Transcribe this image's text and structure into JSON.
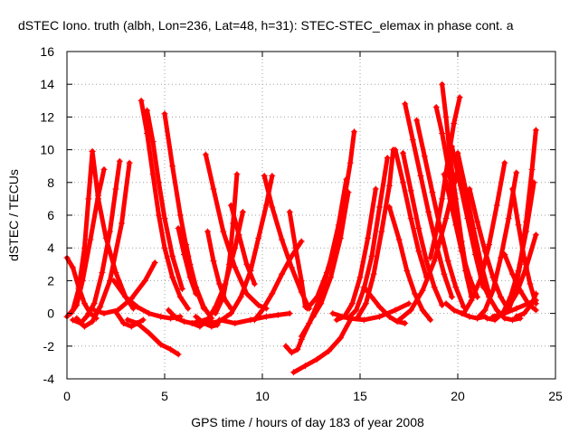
{
  "chart_data": {
    "type": "scatter",
    "title": "dSTEC Iono. truth (albh, Lon=236, Lat=48, h=31): STEC-STEC_elemax in phase cont. a",
    "xlabel": "GPS time / hours of day 183 of year 2008",
    "ylabel": "dSTEC  / TECUs",
    "xlim": [
      0,
      25
    ],
    "ylim": [
      -4,
      16
    ],
    "xticks": [
      0,
      5,
      10,
      15,
      20,
      25
    ],
    "yticks": [
      -4,
      -2,
      0,
      2,
      4,
      6,
      8,
      10,
      12,
      14,
      16
    ],
    "grid": true,
    "marker": "+",
    "color": "#ff0000",
    "series": [
      {
        "x": [
          0.0,
          0.3,
          0.6,
          0.9,
          1.2,
          1.5
        ],
        "y": [
          3.4,
          2.8,
          1.6,
          0.6,
          0.0,
          -0.3
        ]
      },
      {
        "x": [
          0.0,
          0.3,
          0.6,
          0.9,
          1.1,
          1.3
        ],
        "y": [
          -0.2,
          0.2,
          1.5,
          4.0,
          7.0,
          9.9
        ]
      },
      {
        "x": [
          0.2,
          0.5,
          0.8,
          1.2,
          1.6,
          1.9
        ],
        "y": [
          0.0,
          0.5,
          2.0,
          4.5,
          7.2,
          8.8
        ]
      },
      {
        "x": [
          0.3,
          0.7,
          1.0,
          1.4,
          1.8,
          2.2,
          2.5,
          2.7
        ],
        "y": [
          -0.4,
          -0.6,
          -0.2,
          0.6,
          2.5,
          5.0,
          7.6,
          9.3
        ]
      },
      {
        "x": [
          0.5,
          0.9,
          1.3,
          1.7,
          2.2,
          2.8,
          3.2
        ],
        "y": [
          -0.3,
          -0.8,
          -0.5,
          0.4,
          2.0,
          5.5,
          9.2
        ]
      },
      {
        "x": [
          1.3,
          1.6,
          2.0,
          2.5,
          3.0,
          3.4
        ],
        "y": [
          9.9,
          7.0,
          4.6,
          2.5,
          1.0,
          0.3
        ]
      },
      {
        "x": [
          1.4,
          1.9,
          2.6,
          3.3,
          4.0,
          4.5
        ],
        "y": [
          0.2,
          0.0,
          0.2,
          0.9,
          2.0,
          3.1
        ]
      },
      {
        "x": [
          2.5,
          2.9,
          3.3,
          3.6,
          3.9
        ],
        "y": [
          0.1,
          -0.6,
          -0.8,
          -0.6,
          -0.4
        ]
      },
      {
        "x": [
          3.1,
          3.6,
          4.2,
          4.8,
          5.3,
          5.7
        ],
        "y": [
          -0.4,
          -0.6,
          -1.2,
          -1.9,
          -2.2,
          -2.5
        ]
      },
      {
        "x": [
          2.4,
          3.0,
          3.6,
          4.2,
          4.8,
          5.3,
          5.8
        ],
        "y": [
          2.0,
          1.0,
          0.4,
          0.0,
          -0.2,
          -0.3,
          -0.2
        ]
      },
      {
        "x": [
          3.8,
          4.1,
          4.4,
          4.7,
          5.0,
          5.4,
          5.8,
          6.2
        ],
        "y": [
          13.0,
          11.0,
          8.5,
          6.0,
          4.0,
          2.2,
          1.0,
          0.3
        ]
      },
      {
        "x": [
          4.1,
          4.4,
          4.7,
          5.0,
          5.4,
          5.9
        ],
        "y": [
          12.4,
          10.5,
          8.0,
          5.8,
          3.5,
          1.5
        ]
      },
      {
        "x": [
          5.0,
          5.4,
          5.8,
          6.2,
          6.6,
          7.0
        ],
        "y": [
          12.2,
          9.0,
          6.0,
          3.5,
          1.5,
          0.3
        ]
      },
      {
        "x": [
          5.7,
          6.0,
          6.3,
          6.6
        ],
        "y": [
          5.2,
          3.6,
          2.2,
          1.2
        ]
      },
      {
        "x": [
          5.2,
          5.6,
          6.0,
          6.4,
          6.8,
          7.3
        ],
        "y": [
          0.2,
          -0.3,
          -0.5,
          -0.6,
          -0.5,
          -0.3
        ]
      },
      {
        "x": [
          6.1,
          6.3,
          6.6,
          7.0,
          7.4
        ],
        "y": [
          4.2,
          3.0,
          1.6,
          0.4,
          -0.3
        ]
      },
      {
        "x": [
          6.4,
          6.8,
          7.2,
          7.6,
          8.1,
          8.6,
          9.0
        ],
        "y": [
          -0.6,
          -0.8,
          -0.4,
          0.4,
          1.8,
          4.0,
          6.2
        ]
      },
      {
        "x": [
          6.6,
          7.0,
          7.4,
          7.7
        ],
        "y": [
          -0.2,
          -0.6,
          -0.8,
          -0.7
        ]
      },
      {
        "x": [
          7.1,
          7.5,
          8.0,
          8.6,
          9.2,
          9.8,
          10.2
        ],
        "y": [
          9.7,
          7.6,
          5.0,
          2.8,
          1.2,
          0.5,
          0.3
        ]
      },
      {
        "x": [
          7.2,
          7.5,
          7.8,
          8.1,
          8.4
        ],
        "y": [
          5.0,
          3.2,
          1.8,
          0.8,
          0.3
        ]
      },
      {
        "x": [
          7.6,
          8.0,
          8.3,
          8.5,
          8.7
        ],
        "y": [
          0.0,
          1.0,
          3.0,
          5.5,
          8.5
        ]
      },
      {
        "x": [
          7.2,
          7.8,
          8.4,
          8.9,
          9.4,
          9.8,
          10.2,
          10.5
        ],
        "y": [
          -0.6,
          -0.5,
          0.0,
          1.0,
          2.6,
          4.6,
          6.6,
          8.4
        ]
      },
      {
        "x": [
          8.4,
          8.8,
          9.2,
          9.6
        ],
        "y": [
          6.6,
          4.8,
          3.0,
          1.8
        ]
      },
      {
        "x": [
          7.8,
          8.6,
          9.4,
          10.2,
          10.8,
          11.4
        ],
        "y": [
          -0.4,
          -0.6,
          -0.4,
          -0.2,
          -0.1,
          0.0
        ]
      },
      {
        "x": [
          9.6,
          10.0,
          10.5,
          11.0,
          11.5,
          12.0
        ],
        "y": [
          -0.4,
          0.2,
          1.2,
          2.4,
          3.5,
          4.4
        ]
      },
      {
        "x": [
          10.1,
          10.5,
          11.0,
          11.5,
          12.0,
          12.4
        ],
        "y": [
          8.4,
          6.5,
          4.5,
          2.8,
          1.3,
          0.3
        ]
      },
      {
        "x": [
          11.2,
          11.5,
          11.8,
          12.0,
          12.4,
          12.8
        ],
        "y": [
          -2.0,
          -2.4,
          -2.2,
          -1.6,
          -0.6,
          0.3
        ]
      },
      {
        "x": [
          11.4,
          11.7,
          12.0,
          12.2
        ],
        "y": [
          6.2,
          4.0,
          2.0,
          0.4
        ]
      },
      {
        "x": [
          11.6,
          12.2,
          12.8,
          13.4,
          14.0,
          14.5
        ],
        "y": [
          -3.6,
          -3.2,
          -2.8,
          -2.3,
          -1.5,
          -0.4
        ]
      },
      {
        "x": [
          12.3,
          12.8,
          13.3,
          13.8,
          14.2,
          14.5,
          14.7
        ],
        "y": [
          0.3,
          1.0,
          2.5,
          4.5,
          7.0,
          9.2,
          11.1
        ]
      },
      {
        "x": [
          12.0,
          12.4,
          12.9,
          13.4,
          13.9,
          14.3
        ],
        "y": [
          -1.4,
          -0.6,
          0.8,
          2.8,
          5.4,
          8.2
        ]
      },
      {
        "x": [
          12.6,
          13.0,
          13.5,
          14.0,
          14.4
        ],
        "y": [
          -0.2,
          0.6,
          2.2,
          4.6,
          7.4
        ]
      },
      {
        "x": [
          13.8,
          14.2,
          14.6,
          15.0,
          15.4,
          15.8
        ],
        "y": [
          -0.4,
          -0.2,
          0.6,
          2.2,
          4.6,
          7.6
        ]
      },
      {
        "x": [
          14.4,
          14.8,
          15.2,
          15.6,
          16.0,
          16.4
        ],
        "y": [
          -0.3,
          0.2,
          1.5,
          3.5,
          6.5,
          9.5
        ]
      },
      {
        "x": [
          14.9,
          15.3,
          15.7,
          16.1,
          16.5,
          16.7
        ],
        "y": [
          -0.2,
          0.6,
          2.4,
          5.0,
          7.8,
          10.0
        ]
      },
      {
        "x": [
          13.6,
          14.4,
          15.2,
          16.0,
          16.8,
          17.5
        ],
        "y": [
          0.0,
          -0.3,
          -0.4,
          -0.2,
          0.2,
          0.6
        ]
      },
      {
        "x": [
          15.2,
          15.6,
          16.0,
          16.5,
          16.9,
          17.3
        ],
        "y": [
          1.6,
          1.0,
          0.4,
          -0.2,
          -0.5,
          -0.6
        ]
      },
      {
        "x": [
          16.5,
          17.0,
          17.4,
          17.8,
          18.2,
          18.6
        ],
        "y": [
          6.5,
          4.5,
          2.6,
          1.2,
          0.2,
          -0.4
        ]
      },
      {
        "x": [
          16.8,
          17.2,
          17.6,
          18.0,
          18.4
        ],
        "y": [
          10.0,
          8.0,
          5.8,
          3.8,
          2.2
        ]
      },
      {
        "x": [
          17.2,
          17.6,
          18.0,
          18.4,
          18.8,
          19.2
        ],
        "y": [
          9.8,
          7.5,
          5.2,
          3.2,
          1.6,
          0.5
        ]
      },
      {
        "x": [
          17.3,
          17.7,
          18.1,
          18.5,
          18.9,
          19.3,
          19.7
        ],
        "y": [
          12.8,
          10.6,
          8.4,
          6.2,
          4.2,
          2.4,
          1.0
        ]
      },
      {
        "x": [
          17.9,
          18.3,
          18.7,
          19.1,
          19.5,
          19.9,
          20.3
        ],
        "y": [
          11.8,
          9.6,
          7.4,
          5.2,
          3.2,
          1.6,
          0.4
        ]
      },
      {
        "x": [
          18.9,
          19.2,
          19.5,
          19.8,
          20.1,
          20.4,
          20.7
        ],
        "y": [
          12.6,
          11.0,
          9.0,
          6.8,
          4.6,
          2.6,
          1.0
        ]
      },
      {
        "x": [
          19.2,
          19.4,
          19.6,
          19.9,
          20.2,
          20.5
        ],
        "y": [
          14.0,
          12.0,
          9.6,
          7.0,
          4.4,
          2.2
        ]
      },
      {
        "x": [
          18.6,
          18.9,
          19.2,
          19.5,
          19.8,
          20.1
        ],
        "y": [
          3.4,
          5.0,
          7.0,
          9.4,
          11.6,
          13.2
        ]
      },
      {
        "x": [
          17.0,
          17.6,
          18.2,
          18.8,
          19.4,
          20.0
        ],
        "y": [
          -0.4,
          0.2,
          1.4,
          3.2,
          5.8,
          8.8
        ]
      },
      {
        "x": [
          19.3,
          19.6,
          19.9,
          20.2,
          20.6,
          21.0
        ],
        "y": [
          8.5,
          7.0,
          5.4,
          3.8,
          2.2,
          1.0
        ]
      },
      {
        "x": [
          19.4,
          19.8,
          20.2,
          20.6,
          21.0,
          21.4
        ],
        "y": [
          0.6,
          0.2,
          0.0,
          -0.2,
          -0.3,
          -0.2
        ]
      },
      {
        "x": [
          19.7,
          20.1,
          20.5,
          20.9,
          21.3
        ],
        "y": [
          10.2,
          8.0,
          5.8,
          3.6,
          1.6
        ]
      },
      {
        "x": [
          20.0,
          20.4,
          20.8,
          21.2,
          21.6
        ],
        "y": [
          9.8,
          7.6,
          5.2,
          3.0,
          1.2
        ]
      },
      {
        "x": [
          20.6,
          21.0,
          21.4,
          21.8,
          22.2,
          22.6
        ],
        "y": [
          7.6,
          5.6,
          3.8,
          2.2,
          1.0,
          0.2
        ]
      },
      {
        "x": [
          20.3,
          20.7,
          21.2,
          21.6,
          22.0,
          22.4
        ],
        "y": [
          0.0,
          0.8,
          2.2,
          4.2,
          6.6,
          9.2
        ]
      },
      {
        "x": [
          21.0,
          21.4,
          21.8,
          22.2,
          22.6,
          23.0
        ],
        "y": [
          -0.3,
          0.2,
          1.4,
          3.4,
          5.8,
          8.6
        ]
      },
      {
        "x": [
          21.5,
          21.9,
          22.3,
          22.7,
          23.1,
          23.5,
          23.9
        ],
        "y": [
          -0.3,
          -0.4,
          0.0,
          1.0,
          2.6,
          5.0,
          8.0
        ]
      },
      {
        "x": [
          21.2,
          21.6,
          22.0,
          22.4,
          22.8,
          23.2
        ],
        "y": [
          2.0,
          1.0,
          0.2,
          -0.3,
          -0.4,
          -0.3
        ]
      },
      {
        "x": [
          22.6,
          22.9,
          23.2,
          23.5,
          23.8,
          24.0
        ],
        "y": [
          0.2,
          1.2,
          3.0,
          5.6,
          8.8,
          11.2
        ]
      },
      {
        "x": [
          22.8,
          23.1,
          23.4,
          23.7,
          24.0
        ],
        "y": [
          7.6,
          5.4,
          3.4,
          1.8,
          0.6
        ]
      },
      {
        "x": [
          22.0,
          22.5,
          23.0,
          23.5,
          24.0
        ],
        "y": [
          -0.2,
          0.2,
          1.2,
          2.8,
          4.8
        ]
      },
      {
        "x": [
          21.8,
          22.4,
          23.0,
          23.6,
          24.0
        ],
        "y": [
          -0.2,
          0.0,
          0.3,
          0.6,
          0.8
        ]
      },
      {
        "x": [
          22.4,
          22.8,
          23.2,
          23.6,
          24.0
        ],
        "y": [
          3.6,
          2.4,
          1.4,
          0.6,
          0.2
        ]
      },
      {
        "x": [
          23.0,
          23.4,
          23.8,
          24.0
        ],
        "y": [
          -0.2,
          0.0,
          0.6,
          1.2
        ]
      }
    ]
  }
}
